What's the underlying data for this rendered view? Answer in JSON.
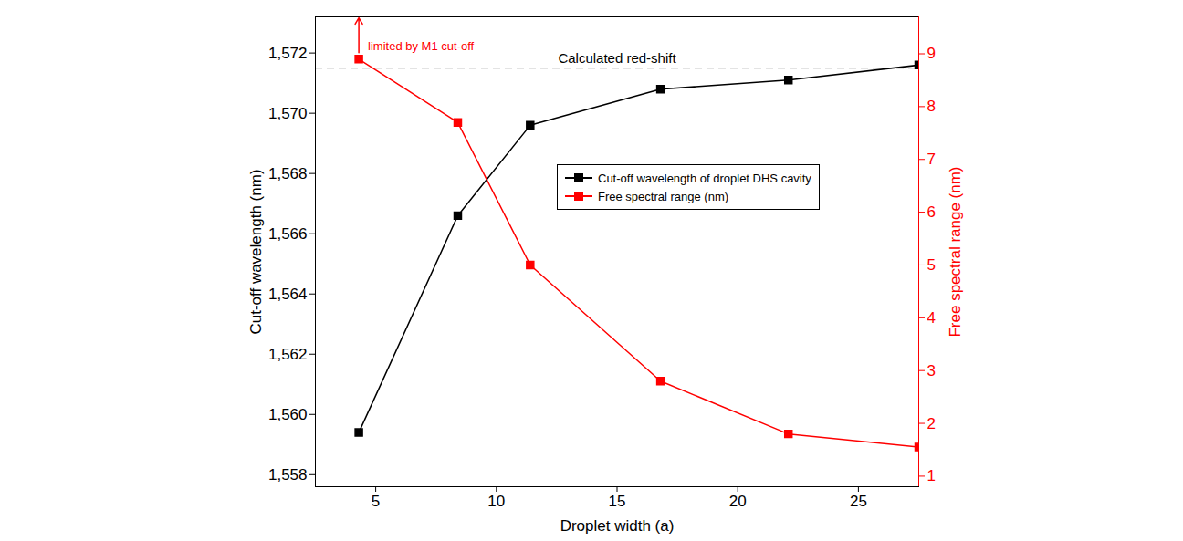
{
  "chart_data": {
    "type": "line",
    "x_label": "Droplet width (a)",
    "y_label": "Cut-off wavelength (nm)",
    "y2_label": "Free spectral range (nm)",
    "x": [
      4.3,
      8.4,
      11.4,
      16.8,
      22.1,
      27.5
    ],
    "xlim": [
      2.5,
      27.5
    ],
    "xticks": [
      5,
      10,
      15,
      20,
      25
    ],
    "ylim": [
      1557.6,
      1573.2
    ],
    "yticks": [
      1558,
      1560,
      1562,
      1564,
      1566,
      1568,
      1570,
      1572
    ],
    "y2lim": [
      0.8,
      9.7
    ],
    "y2ticks": [
      1,
      2,
      3,
      4,
      5,
      6,
      7,
      8,
      9
    ],
    "legend": "right",
    "series": [
      {
        "name": "Cut-off wavelength of droplet DHS cavity",
        "color": "#000000",
        "marker": "square",
        "line_style": "solid",
        "values": [
          1559.4,
          1566.6,
          1569.6,
          1570.8,
          1571.1,
          1571.6
        ]
      },
      {
        "name": "Free spectral range (nm)",
        "color": "#ff0000",
        "marker": "square",
        "line_style": "solid",
        "axis": "y2",
        "values": [
          8.9,
          7.7,
          5.0,
          2.8,
          1.8,
          1.55
        ]
      }
    ],
    "annotations": [
      {
        "text": "Calculated red-shift",
        "y": 1571.5,
        "line_style": "dashed",
        "color": "#000000"
      },
      {
        "text": "limited by M1 cut-off",
        "x": 4.3,
        "y": 8.9,
        "axis": "y2",
        "color": "#ff0000"
      }
    ]
  }
}
